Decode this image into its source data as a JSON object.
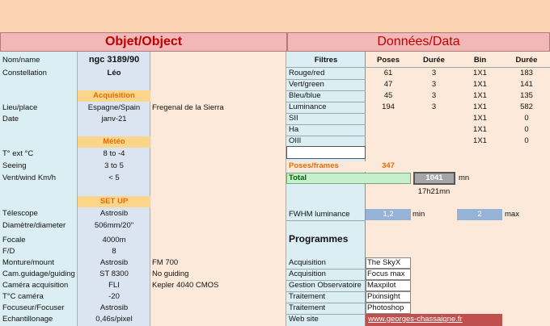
{
  "header": {
    "left_title": "Objet/Object",
    "right_title": "Données/Data"
  },
  "object": {
    "name_label": "Nom/name",
    "name_value": "ngc 3189/90",
    "constellation_label": "Constellation",
    "constellation_value": "Léo"
  },
  "acquisition": {
    "section": "Acquisition",
    "place_label": "Lieu/place",
    "place_value": "Espagne/Spain",
    "place_detail": "Fregenal de la Sierra",
    "date_label": "Date",
    "date_value": "janv-21"
  },
  "meteo": {
    "section": "Météo",
    "temp_label": "T° ext °C",
    "temp_value": "8 to -4",
    "seeing_label": "Seeing",
    "seeing_value": "3 to 5",
    "wind_label": "Vent/wind  Km/h",
    "wind_value": "< 5"
  },
  "setup": {
    "section": "SET UP",
    "telescope_label": "Télescope",
    "telescope_value": "Astrosib",
    "diameter_label": "Diamètre/diameter",
    "diameter_value": "506mm/20\"",
    "focal_label": "Focale",
    "focal_value": "4000m",
    "fd_label": "F/D",
    "fd_value": "8",
    "mount_label": "Monture/mount",
    "mount_value": "Astrosib",
    "mount_detail": "FM 700",
    "guiding_label": "Cam.guidage/guiding",
    "guiding_value": "ST 8300",
    "guiding_detail": "No guiding",
    "camera_label": "Caméra acquisition",
    "camera_value": "FLI",
    "camera_detail": "Kepler 4040 CMOS",
    "tcam_label": "T°C caméra",
    "tcam_value": "-20",
    "focuser_label": "Focuseur/Focuser",
    "focuser_value": "Astrosib",
    "sampling_label": "Echantillonage",
    "sampling_value": "0,46s/pixel"
  },
  "data_table": {
    "headers": [
      "Filtres",
      "Poses",
      "Durée",
      "Bin",
      "Durée"
    ],
    "rows": [
      [
        "Rouge/red",
        "61",
        "3",
        "1X1",
        "183"
      ],
      [
        "Vert/green",
        "47",
        "3",
        "1X1",
        "141"
      ],
      [
        "Bleu/blue",
        "45",
        "3",
        "1X1",
        "135"
      ],
      [
        "Luminance",
        "194",
        "3",
        "1X1",
        "582"
      ],
      [
        "SII",
        "",
        "",
        "1X1",
        "0"
      ],
      [
        "Ha",
        "",
        "",
        "1X1",
        "0"
      ],
      [
        "OIII",
        "",
        "",
        "1X1",
        "0"
      ]
    ]
  },
  "totals": {
    "poses_label": "Poses/frames",
    "poses_value": "347",
    "total_label": "Total",
    "total_value": "1041",
    "total_unit": "mn",
    "total_hours": "17h21mn"
  },
  "fwhm": {
    "label": "FWHM luminance",
    "min_value": "1,2",
    "min_label": "min",
    "max_value": "2",
    "max_label": "max"
  },
  "programs": {
    "title": "Programmes",
    "rows": [
      [
        "Acquisition",
        "The SkyX"
      ],
      [
        "Acquisition",
        "Focus max"
      ],
      [
        "Gestion Observatoire",
        "Maxpilot"
      ],
      [
        "Traitement",
        "Pixinsight"
      ],
      [
        "Traitement",
        "Photoshop"
      ]
    ],
    "website_label": "Web site",
    "website_value": "www.georges-chassaigne.fr",
    "website_color": "#c0504d"
  }
}
